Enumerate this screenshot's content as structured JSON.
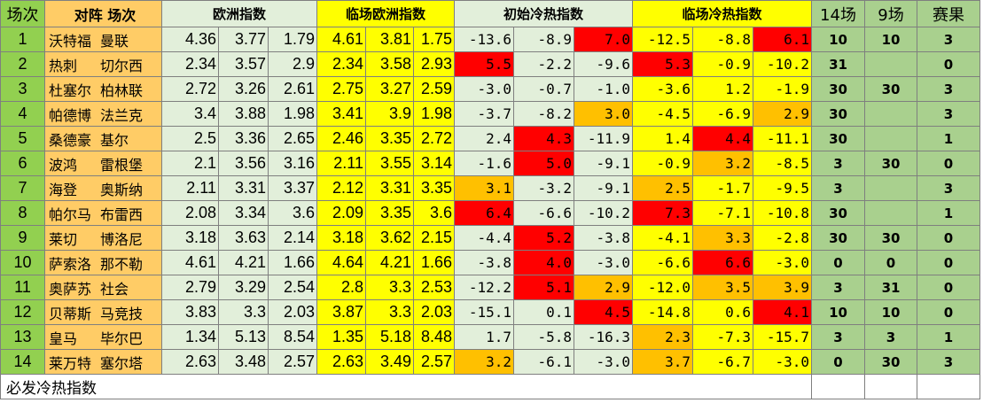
{
  "colors": {
    "index_green": "#92d050",
    "team_orange": "#ffcc66",
    "light_green": "#e2efda",
    "yellow": "#ffff00",
    "hot_red": "#ff0000",
    "warm_orange": "#ffc000",
    "result_green": "#a9d08e"
  },
  "headers": {
    "index": "场次",
    "teams": "对阵  场次",
    "euro": "欧洲指数",
    "live_euro": "临场欧洲指数",
    "init_hc": "初始冷热指数",
    "live_hc": "临场冷热指数",
    "p14": "14场",
    "p9": "9场",
    "result": "赛果"
  },
  "rows": [
    {
      "idx": "1",
      "home": "沃特福",
      "away": "曼联",
      "euro": [
        "4.36",
        "3.77",
        "1.79"
      ],
      "live": [
        "4.61",
        "3.81",
        "1.75"
      ],
      "init": [
        "-13.6",
        "-8.9",
        "7.0"
      ],
      "init_bg": [
        "lightgreen",
        "lightgreen",
        "red"
      ],
      "lhc": [
        "-12.5",
        "-8.8",
        "6.1"
      ],
      "lhc_bg": [
        "yellow",
        "yellow",
        "red"
      ],
      "p14": "10",
      "p9": "10",
      "res": "3"
    },
    {
      "idx": "2",
      "home": "热刺",
      "away": "切尔西",
      "euro": [
        "2.34",
        "3.57",
        "2.9"
      ],
      "live": [
        "2.34",
        "3.58",
        "2.93"
      ],
      "init": [
        "5.5",
        "-2.2",
        "-9.6"
      ],
      "init_bg": [
        "red",
        "lightgreen",
        "lightgreen"
      ],
      "lhc": [
        "5.3",
        "-0.9",
        "-10.2"
      ],
      "lhc_bg": [
        "red",
        "yellow",
        "yellow"
      ],
      "p14": "31",
      "p9": "",
      "res": "0"
    },
    {
      "idx": "3",
      "home": "杜塞尔",
      "away": "柏林联",
      "euro": [
        "2.72",
        "3.26",
        "2.61"
      ],
      "live": [
        "2.75",
        "3.27",
        "2.59"
      ],
      "init": [
        "-3.0",
        "-0.7",
        "-1.0"
      ],
      "init_bg": [
        "lightgreen",
        "lightgreen",
        "lightgreen"
      ],
      "lhc": [
        "-3.6",
        "1.2",
        "-1.9"
      ],
      "lhc_bg": [
        "yellow",
        "yellow",
        "yellow"
      ],
      "p14": "30",
      "p9": "30",
      "res": "3"
    },
    {
      "idx": "4",
      "home": "帕德博",
      "away": "法兰克",
      "euro": [
        "3.4",
        "3.88",
        "1.98"
      ],
      "live": [
        "3.41",
        "3.9",
        "1.98"
      ],
      "init": [
        "-3.7",
        "-8.2",
        "3.0"
      ],
      "init_bg": [
        "lightgreen",
        "lightgreen",
        "orange"
      ],
      "lhc": [
        "-4.5",
        "-6.9",
        "2.9"
      ],
      "lhc_bg": [
        "yellow",
        "yellow",
        "orange"
      ],
      "p14": "30",
      "p9": "",
      "res": "3"
    },
    {
      "idx": "5",
      "home": "桑德豪",
      "away": "基尔",
      "euro": [
        "2.5",
        "3.36",
        "2.65"
      ],
      "live": [
        "2.46",
        "3.35",
        "2.72"
      ],
      "init": [
        "2.4",
        "4.3",
        "-11.9"
      ],
      "init_bg": [
        "lightgreen",
        "red",
        "lightgreen"
      ],
      "lhc": [
        "1.4",
        "4.4",
        "-11.1"
      ],
      "lhc_bg": [
        "yellow",
        "red",
        "yellow"
      ],
      "p14": "30",
      "p9": "",
      "res": "1"
    },
    {
      "idx": "6",
      "home": "波鸿",
      "away": "雷根堡",
      "euro": [
        "2.1",
        "3.56",
        "3.16"
      ],
      "live": [
        "2.11",
        "3.55",
        "3.14"
      ],
      "init": [
        "-1.6",
        "5.0",
        "-9.1"
      ],
      "init_bg": [
        "lightgreen",
        "red",
        "lightgreen"
      ],
      "lhc": [
        "-0.9",
        "3.2",
        "-8.5"
      ],
      "lhc_bg": [
        "yellow",
        "orange",
        "yellow"
      ],
      "p14": "3",
      "p9": "30",
      "res": "0"
    },
    {
      "idx": "7",
      "home": "海登",
      "away": "奥斯纳",
      "euro": [
        "2.11",
        "3.31",
        "3.37"
      ],
      "live": [
        "2.12",
        "3.31",
        "3.35"
      ],
      "init": [
        "3.1",
        "-3.2",
        "-9.1"
      ],
      "init_bg": [
        "orange",
        "lightgreen",
        "lightgreen"
      ],
      "lhc": [
        "2.5",
        "-1.7",
        "-9.5"
      ],
      "lhc_bg": [
        "orange",
        "yellow",
        "yellow"
      ],
      "p14": "3",
      "p9": "",
      "res": "3"
    },
    {
      "idx": "8",
      "home": "帕尔马",
      "away": "布雷西",
      "euro": [
        "2.08",
        "3.34",
        "3.6"
      ],
      "live": [
        "2.09",
        "3.35",
        "3.6"
      ],
      "init": [
        "6.4",
        "-6.6",
        "-10.2"
      ],
      "init_bg": [
        "red",
        "lightgreen",
        "lightgreen"
      ],
      "lhc": [
        "7.3",
        "-7.1",
        "-10.8"
      ],
      "lhc_bg": [
        "red",
        "yellow",
        "yellow"
      ],
      "p14": "30",
      "p9": "",
      "res": "1"
    },
    {
      "idx": "9",
      "home": "莱切",
      "away": "博洛尼",
      "euro": [
        "3.18",
        "3.63",
        "2.14"
      ],
      "live": [
        "3.18",
        "3.62",
        "2.15"
      ],
      "init": [
        "-4.4",
        "5.2",
        "-3.8"
      ],
      "init_bg": [
        "lightgreen",
        "red",
        "lightgreen"
      ],
      "lhc": [
        "-4.1",
        "3.3",
        "-2.8"
      ],
      "lhc_bg": [
        "yellow",
        "orange",
        "yellow"
      ],
      "p14": "30",
      "p9": "30",
      "res": "0"
    },
    {
      "idx": "10",
      "home": "萨索洛",
      "away": "那不勒",
      "euro": [
        "4.61",
        "4.21",
        "1.66"
      ],
      "live": [
        "4.64",
        "4.21",
        "1.66"
      ],
      "init": [
        "-3.8",
        "4.0",
        "-3.0"
      ],
      "init_bg": [
        "lightgreen",
        "red",
        "lightgreen"
      ],
      "lhc": [
        "-6.6",
        "6.6",
        "-3.0"
      ],
      "lhc_bg": [
        "yellow",
        "red",
        "yellow"
      ],
      "p14": "0",
      "p9": "0",
      "res": "0"
    },
    {
      "idx": "11",
      "home": "奥萨苏",
      "away": "社会",
      "euro": [
        "2.79",
        "3.29",
        "2.54"
      ],
      "live": [
        "2.8",
        "3.3",
        "2.53"
      ],
      "init": [
        "-12.2",
        "5.1",
        "2.9"
      ],
      "init_bg": [
        "lightgreen",
        "red",
        "orange"
      ],
      "lhc": [
        "-12.0",
        "3.5",
        "3.9"
      ],
      "lhc_bg": [
        "yellow",
        "orange",
        "orange"
      ],
      "p14": "3",
      "p9": "31",
      "res": "0"
    },
    {
      "idx": "12",
      "home": "贝蒂斯",
      "away": "马竞技",
      "euro": [
        "3.83",
        "3.3",
        "2.03"
      ],
      "live": [
        "3.87",
        "3.3",
        "2.03"
      ],
      "init": [
        "-15.1",
        "0.1",
        "4.5"
      ],
      "init_bg": [
        "lightgreen",
        "lightgreen",
        "red"
      ],
      "lhc": [
        "-14.8",
        "0.6",
        "4.1"
      ],
      "lhc_bg": [
        "yellow",
        "yellow",
        "red"
      ],
      "p14": "10",
      "p9": "10",
      "res": "0"
    },
    {
      "idx": "13",
      "home": "皇马",
      "away": "毕尔巴",
      "euro": [
        "1.34",
        "5.13",
        "8.54"
      ],
      "live": [
        "1.35",
        "5.18",
        "8.48"
      ],
      "init": [
        "1.7",
        "-5.8",
        "-16.3"
      ],
      "init_bg": [
        "lightgreen",
        "lightgreen",
        "lightgreen"
      ],
      "lhc": [
        "2.3",
        "-7.3",
        "-15.7"
      ],
      "lhc_bg": [
        "orange",
        "yellow",
        "yellow"
      ],
      "p14": "3",
      "p9": "3",
      "res": "1"
    },
    {
      "idx": "14",
      "home": "莱万特",
      "away": "塞尔塔",
      "euro": [
        "2.63",
        "3.48",
        "2.57"
      ],
      "live": [
        "2.63",
        "3.49",
        "2.57"
      ],
      "init": [
        "3.2",
        "-6.1",
        "-3.0"
      ],
      "init_bg": [
        "orange",
        "lightgreen",
        "lightgreen"
      ],
      "lhc": [
        "3.7",
        "-6.7",
        "-3.0"
      ],
      "lhc_bg": [
        "orange",
        "yellow",
        "yellow"
      ],
      "p14": "0",
      "p9": "30",
      "res": "3"
    }
  ],
  "footer": {
    "label": "必发冷热指数"
  }
}
